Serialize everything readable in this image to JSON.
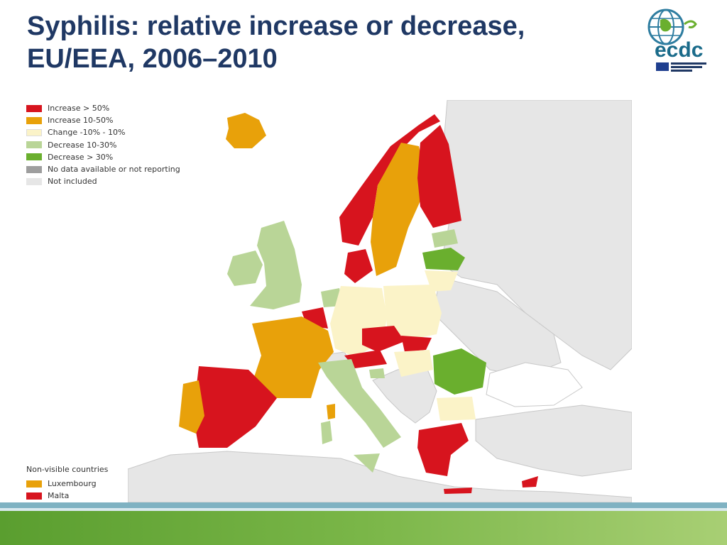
{
  "title": {
    "line1": "Syphilis: relative increase or decrease,",
    "line2": "EU/EEA, 2006–2010"
  },
  "logo": {
    "text": "ecdc",
    "icon": "globe-logo-icon"
  },
  "colors": {
    "increase_gt50": "#d7141e",
    "increase_10_50": "#e8a10a",
    "change_pm10": "#fbf3c8",
    "decrease_10_30": "#b9d597",
    "decrease_gt30": "#6aaf2e",
    "no_data": "#9e9e9e",
    "not_included": "#e6e6e6"
  },
  "legend": [
    {
      "label": "Increase > 50%",
      "color": "#d7141e"
    },
    {
      "label": "Increase 10-50%",
      "color": "#e8a10a"
    },
    {
      "label": "Change -10% - 10%",
      "color": "#fbf3c8"
    },
    {
      "label": "Decrease 10-30%",
      "color": "#b9d597"
    },
    {
      "label": "Decrease > 30%",
      "color": "#6aaf2e"
    },
    {
      "label": "No data available or not reporting",
      "color": "#9e9e9e"
    },
    {
      "label": "Not included",
      "color": "#e6e6e6"
    }
  ],
  "non_visible": {
    "title": "Non-visible countries",
    "items": [
      {
        "label": "Luxembourg",
        "color": "#e8a10a"
      },
      {
        "label": "Malta",
        "color": "#d7141e"
      }
    ]
  }
}
